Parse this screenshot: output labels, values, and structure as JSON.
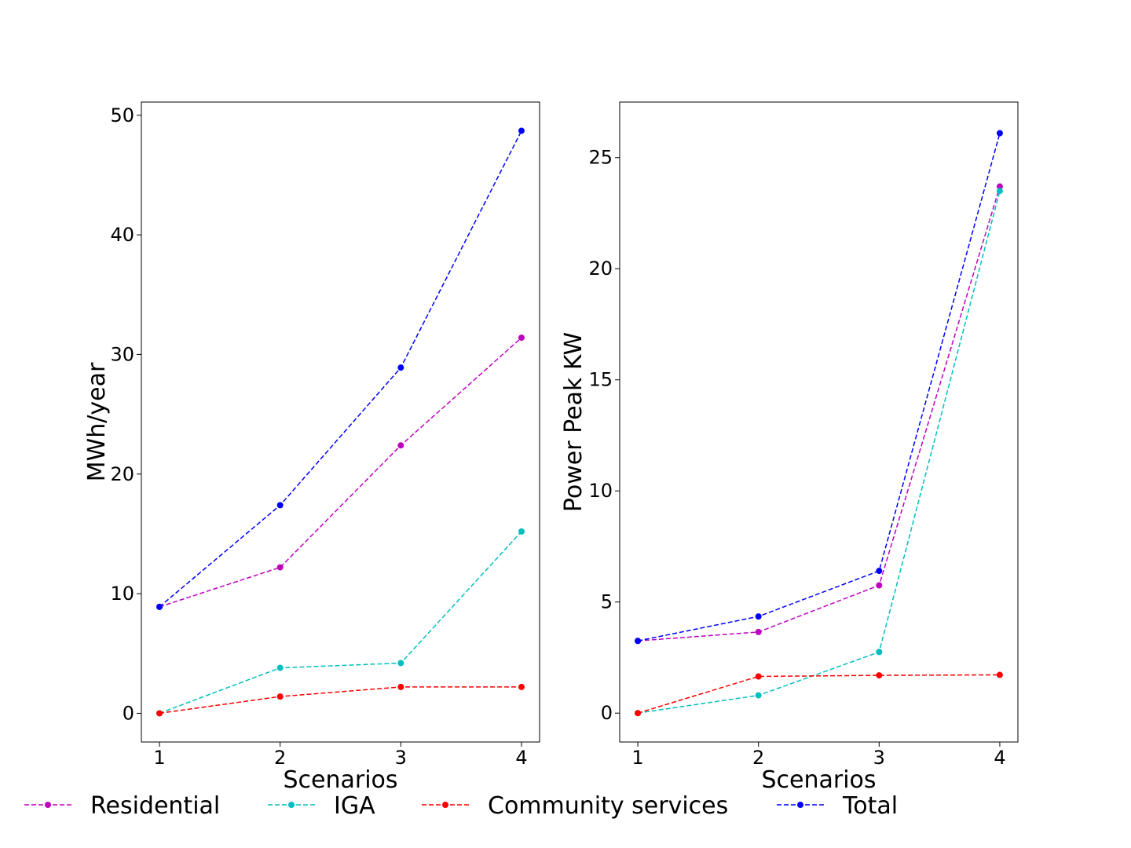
{
  "chart_data": [
    {
      "type": "line",
      "x": [
        1,
        2,
        3,
        4
      ],
      "xlabel": "Scenarios",
      "ylabel": "MWh/year",
      "xlim": [
        0.85,
        4.15
      ],
      "ylim": [
        -2.4,
        51.1
      ],
      "xticks": [
        1,
        2,
        3,
        4
      ],
      "yticks": [
        0,
        10,
        20,
        30,
        40,
        50
      ],
      "grid": false,
      "series": [
        {
          "name": "Residential",
          "color": "#bf00bf",
          "values": [
            8.9,
            12.2,
            22.4,
            31.4
          ]
        },
        {
          "name": "IGA",
          "color": "#00bfbf",
          "values": [
            0.0,
            3.8,
            4.2,
            15.2
          ]
        },
        {
          "name": "Community services",
          "color": "#ff0000",
          "values": [
            0.0,
            1.4,
            2.2,
            2.2
          ]
        },
        {
          "name": "Total",
          "color": "#0000ff",
          "values": [
            8.9,
            17.4,
            28.9,
            48.7
          ]
        }
      ]
    },
    {
      "type": "line",
      "x": [
        1,
        2,
        3,
        4
      ],
      "xlabel": "Scenarios",
      "ylabel": "Power Peak KW",
      "xlim": [
        0.85,
        4.15
      ],
      "ylim": [
        -1.3,
        27.5
      ],
      "xticks": [
        1,
        2,
        3,
        4
      ],
      "yticks": [
        0,
        5,
        10,
        15,
        20,
        25
      ],
      "grid": false,
      "series": [
        {
          "name": "Residential",
          "color": "#bf00bf",
          "values": [
            3.25,
            3.65,
            5.75,
            23.7
          ]
        },
        {
          "name": "IGA",
          "color": "#00bfbf",
          "values": [
            0.0,
            0.8,
            2.75,
            23.5
          ]
        },
        {
          "name": "Community services",
          "color": "#ff0000",
          "values": [
            0.0,
            1.65,
            1.7,
            1.72
          ]
        },
        {
          "name": "Total",
          "color": "#0000ff",
          "values": [
            3.25,
            4.35,
            6.4,
            26.1
          ]
        }
      ]
    }
  ],
  "legend": {
    "position": "bottom",
    "items": [
      {
        "label": "Residential",
        "color": "#bf00bf"
      },
      {
        "label": "IGA",
        "color": "#00bfbf"
      },
      {
        "label": "Community services",
        "color": "#ff0000"
      },
      {
        "label": "Total",
        "color": "#0000ff"
      }
    ]
  }
}
